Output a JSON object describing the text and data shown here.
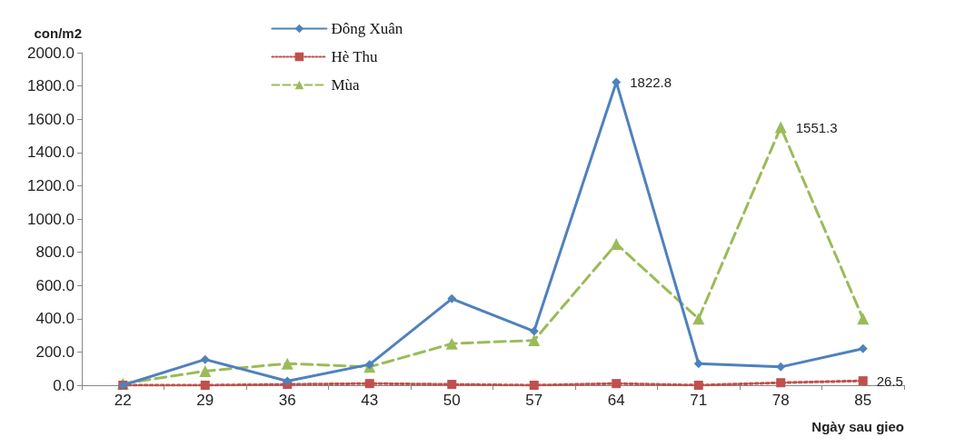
{
  "chart_data": {
    "type": "line",
    "xlabel": "Ngày sau gieo",
    "ylabel": "con/m2",
    "categories": [
      "22",
      "29",
      "36",
      "43",
      "50",
      "57",
      "64",
      "71",
      "78",
      "85"
    ],
    "series": [
      {
        "name": "Đông Xuân",
        "color": "#4f81bd",
        "marker": "diamond",
        "line_style": "solid",
        "values": [
          0,
          155,
          25,
          125,
          520,
          325,
          1822.8,
          130,
          110,
          220
        ],
        "value_labels": [
          null,
          null,
          null,
          null,
          null,
          null,
          "1822.8",
          null,
          null,
          null
        ]
      },
      {
        "name": "Hè Thu",
        "color": "#c0504d",
        "marker": "square",
        "line_style": "dotted",
        "values": [
          0,
          0,
          5,
          10,
          5,
          0,
          10,
          0,
          15,
          26.5
        ],
        "value_labels": [
          null,
          null,
          null,
          null,
          null,
          null,
          null,
          null,
          null,
          "26.5"
        ]
      },
      {
        "name": "Mùa",
        "color": "#9bbb59",
        "marker": "triangle",
        "line_style": "dashed",
        "values": [
          10,
          85,
          130,
          110,
          250,
          270,
          850,
          400,
          1551.3,
          400
        ],
        "value_labels": [
          null,
          null,
          null,
          null,
          null,
          null,
          null,
          null,
          "1551.3",
          null
        ]
      }
    ],
    "ylim": [
      0,
      2000
    ],
    "yticks": [
      {
        "value": 0,
        "label": "0.0"
      },
      {
        "value": 200,
        "label": "200.0"
      },
      {
        "value": 400,
        "label": "400.0"
      },
      {
        "value": 600,
        "label": "600.0"
      },
      {
        "value": 800,
        "label": "800.0"
      },
      {
        "value": 1000,
        "label": "1000.0"
      },
      {
        "value": 1200,
        "label": "1200.0"
      },
      {
        "value": 1400,
        "label": "1400.0"
      },
      {
        "value": 1600,
        "label": "1600.0"
      },
      {
        "value": 1800,
        "label": "1800.0"
      },
      {
        "value": 2000,
        "label": "2000.0"
      }
    ],
    "grid": false,
    "legend": "top left"
  }
}
